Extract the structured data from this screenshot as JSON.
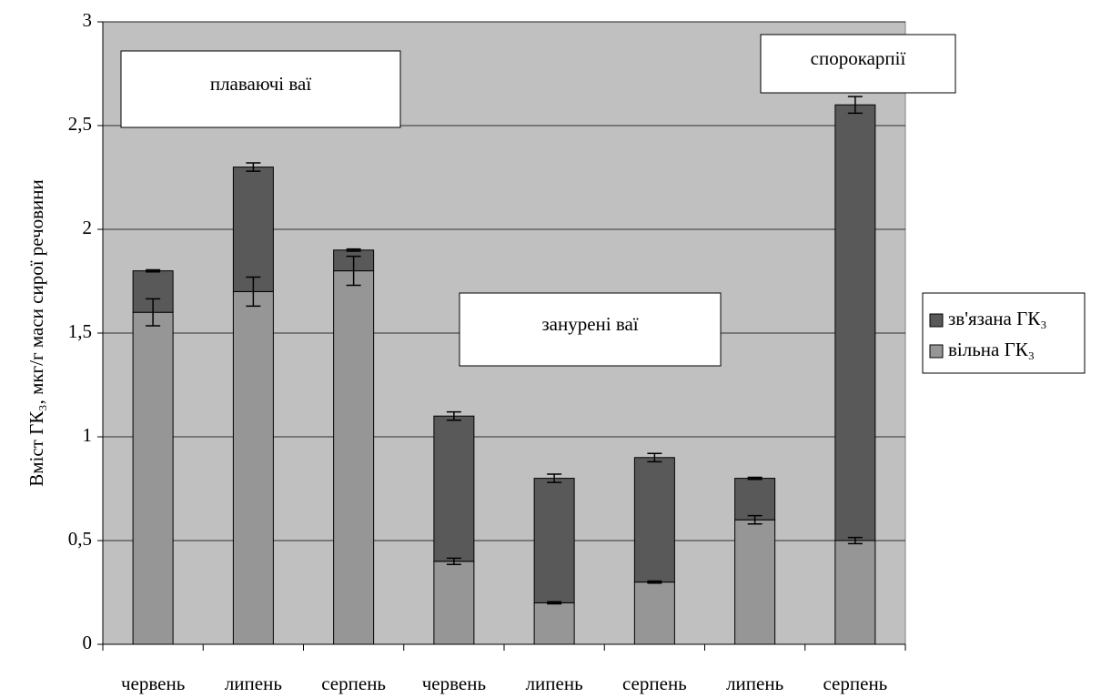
{
  "chart_data": {
    "type": "bar",
    "stacked": true,
    "y_label": "Вміст ГК₃, мкг/г маси сирої речовини",
    "categories": [
      "червень",
      "липень",
      "серпень",
      "червень",
      "липень",
      "серпень",
      "липень",
      "серпень"
    ],
    "series": [
      {
        "name": "вільна ГК₃",
        "color": "#969696",
        "values": [
          1.6,
          1.7,
          1.8,
          0.4,
          0.2,
          0.3,
          0.6,
          0.5
        ],
        "errors": [
          0.065,
          0.07,
          0.07,
          0.015,
          0.005,
          0.005,
          0.02,
          0.015
        ]
      },
      {
        "name": "зв'язана ГК₃",
        "color": "#595959",
        "values": [
          0.2,
          0.6,
          0.1,
          0.7,
          0.6,
          0.6,
          0.2,
          2.1
        ],
        "errors": [
          0.005,
          0.02,
          0.005,
          0.02,
          0.02,
          0.02,
          0.005,
          0.04
        ]
      }
    ],
    "annotations": [
      "плаваючі ваї",
      "занурені ваї",
      "спорокарпії"
    ],
    "ylim": [
      0,
      3
    ],
    "yticks": [
      0,
      {
        "value": 0.5,
        "label": "0,5"
      },
      1,
      {
        "value": 1.5,
        "label": "1,5"
      },
      2,
      {
        "value": 2.5,
        "label": "2,5"
      },
      3
    ],
    "grid": true,
    "plot_background": "#c0c0c0",
    "legend": "right"
  }
}
